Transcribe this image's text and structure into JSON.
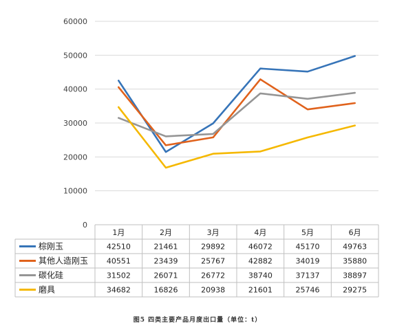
{
  "caption": "图5 四类主要产品月度出口量（单位：t）",
  "chart_data": {
    "type": "line",
    "categories": [
      "1月",
      "2月",
      "3月",
      "4月",
      "5月",
      "6月"
    ],
    "ylim": [
      0,
      60000
    ],
    "yticks": [
      "0",
      "10000",
      "20000",
      "30000",
      "40000",
      "50000",
      "60000"
    ],
    "grid": true,
    "legend": "data-table",
    "series": [
      {
        "name": "棕刚玉",
        "color": "#3674b8",
        "values": [
          42510,
          21461,
          29892,
          46072,
          45170,
          49763
        ]
      },
      {
        "name": "其他人造刚玉",
        "color": "#e0621c",
        "values": [
          40551,
          23439,
          25767,
          42882,
          34019,
          35880
        ]
      },
      {
        "name": "碳化硅",
        "color": "#959595",
        "values": [
          31502,
          26071,
          26772,
          38740,
          37137,
          38897
        ]
      },
      {
        "name": "磨具",
        "color": "#f5b800",
        "values": [
          34682,
          16826,
          20938,
          21601,
          25746,
          29275
        ]
      }
    ]
  }
}
